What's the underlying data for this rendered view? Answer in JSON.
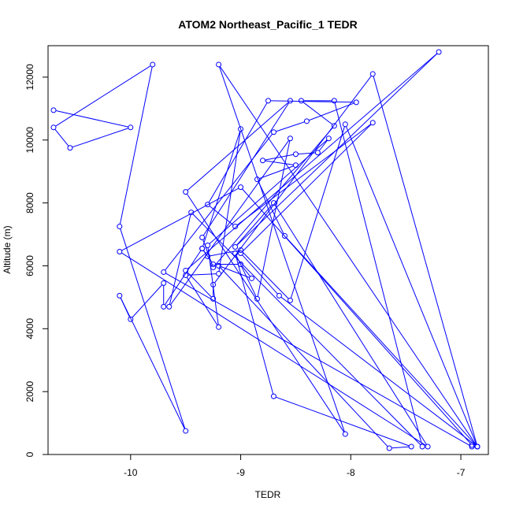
{
  "chart_data": {
    "type": "line",
    "title": "ATOM2 Northeast_Pacific_1 TEDR",
    "xlabel": "TEDR",
    "ylabel": "Altitude (m)",
    "xlim": [
      -10.75,
      -6.75
    ],
    "ylim": [
      0,
      13000
    ],
    "x_ticks": [
      -10,
      -9,
      -8,
      -7
    ],
    "x_tick_labels": [
      "-10",
      "-9",
      "-8",
      "-7"
    ],
    "y_ticks": [
      0,
      2000,
      4000,
      6000,
      8000,
      10000,
      12000
    ],
    "y_tick_labels": [
      "0",
      "2000",
      "4000",
      "6000",
      "8000",
      "10000",
      "12000"
    ],
    "grid": false,
    "color": "#0000ff",
    "series": [
      {
        "x": [
          -10.7,
          -10.0,
          -10.55,
          -10.7,
          -9.8,
          -10.1,
          -9.5,
          -10.1,
          -10.0,
          -9.7,
          -9.7,
          -9.35,
          -9.0,
          -9.2,
          -9.5,
          -9.2,
          -9.3,
          -8.2,
          -8.3,
          -8.5,
          -8.8,
          -8.5,
          -8.85,
          -8.6,
          -6.85,
          -6.9,
          -9.7,
          -8.7,
          -8.4,
          -7.95,
          -8.75,
          -9.3,
          -9.05,
          -7.8,
          -9.0,
          -8.65,
          -6.85,
          -9.2,
          -8.05,
          -9.5,
          -8.55,
          -9.35,
          -9.25,
          -8.15,
          -8.45,
          -8.15,
          -7.35,
          -9.45,
          -9.65,
          -8.55,
          -8.85,
          -9.05,
          -8.7,
          -7.45,
          -7.65,
          -9.2,
          -8.9,
          -9.0,
          -9.25,
          -9.35,
          -9.3,
          -9.0,
          -8.55,
          -8.05,
          -6.85,
          -7.8,
          -9.25,
          -9.25,
          -9.5,
          -7.2,
          -9.05,
          -8.7,
          -7.3,
          -10.1,
          -9.0,
          -6.9
        ],
        "y": [
          10950,
          10400,
          9750,
          10400,
          12400,
          7250,
          750,
          5050,
          4300,
          5450,
          4700,
          6550,
          10350,
          5750,
          5700,
          4050,
          6650,
          10050,
          9600,
          9550,
          9350,
          9200,
          8750,
          6950,
          250,
          250,
          5800,
          10250,
          10600,
          11200,
          11250,
          7950,
          7250,
          10550,
          6400,
          5050,
          250,
          12400,
          650,
          8350,
          11250,
          6900,
          5950,
          10450,
          11250,
          11250,
          250,
          7700,
          4700,
          10050,
          4950,
          6400,
          1850,
          250,
          200,
          6000,
          5600,
          6050,
          6050,
          6550,
          6300,
          6500,
          4900,
          10500,
          250,
          12100,
          5400,
          4950,
          5850,
          12800,
          6600,
          8000,
          250,
          6450,
          8500,
          300
        ]
      }
    ]
  }
}
